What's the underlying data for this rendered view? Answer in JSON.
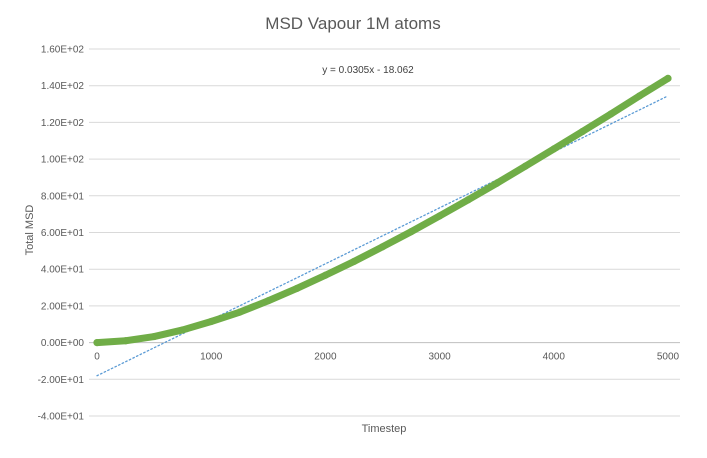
{
  "chart_data": {
    "type": "scatter",
    "title": "MSD Vapour 1M atoms",
    "xlabel": "Timestep",
    "ylabel": "Total MSD",
    "xlim": [
      0,
      5000
    ],
    "ylim": [
      -40,
      160
    ],
    "x_ticks": [
      "0",
      "1000",
      "2000",
      "3000",
      "4000",
      "5000"
    ],
    "y_ticks": [
      "1.60E+02",
      "1.40E+02",
      "1.20E+02",
      "1.00E+02",
      "8.00E+01",
      "6.00E+01",
      "4.00E+01",
      "2.00E+01",
      "0.00E+00",
      "-2.00E+01",
      "-4.00E+01"
    ],
    "grid": "horizontal",
    "series": [
      {
        "color": "#70ad47",
        "marker": "circle",
        "x": [
          0,
          250,
          500,
          750,
          1000,
          1250,
          1500,
          1750,
          2000,
          2250,
          2500,
          2750,
          3000,
          3250,
          3500,
          3750,
          4000,
          4250,
          4500,
          4750,
          5000
        ],
        "values": [
          0,
          1.0,
          3.3,
          6.9,
          11.5,
          16.6,
          22.8,
          29.5,
          36.7,
          44.2,
          52.2,
          60.4,
          69.0,
          77.8,
          86.8,
          96.1,
          105.5,
          115.0,
          124.6,
          134.4,
          144
        ]
      }
    ],
    "trendline": {
      "type": "linear",
      "slope": 0.0305,
      "intercept": -18.062,
      "x_range": [
        0,
        5000
      ],
      "color": "#5b9bd5",
      "style": "dotted",
      "label": "y = 0.0305x - 18.062"
    }
  },
  "colors": {
    "gridline": "#d9d9d9",
    "axis": "#bfbfbf",
    "text": "#595959"
  }
}
